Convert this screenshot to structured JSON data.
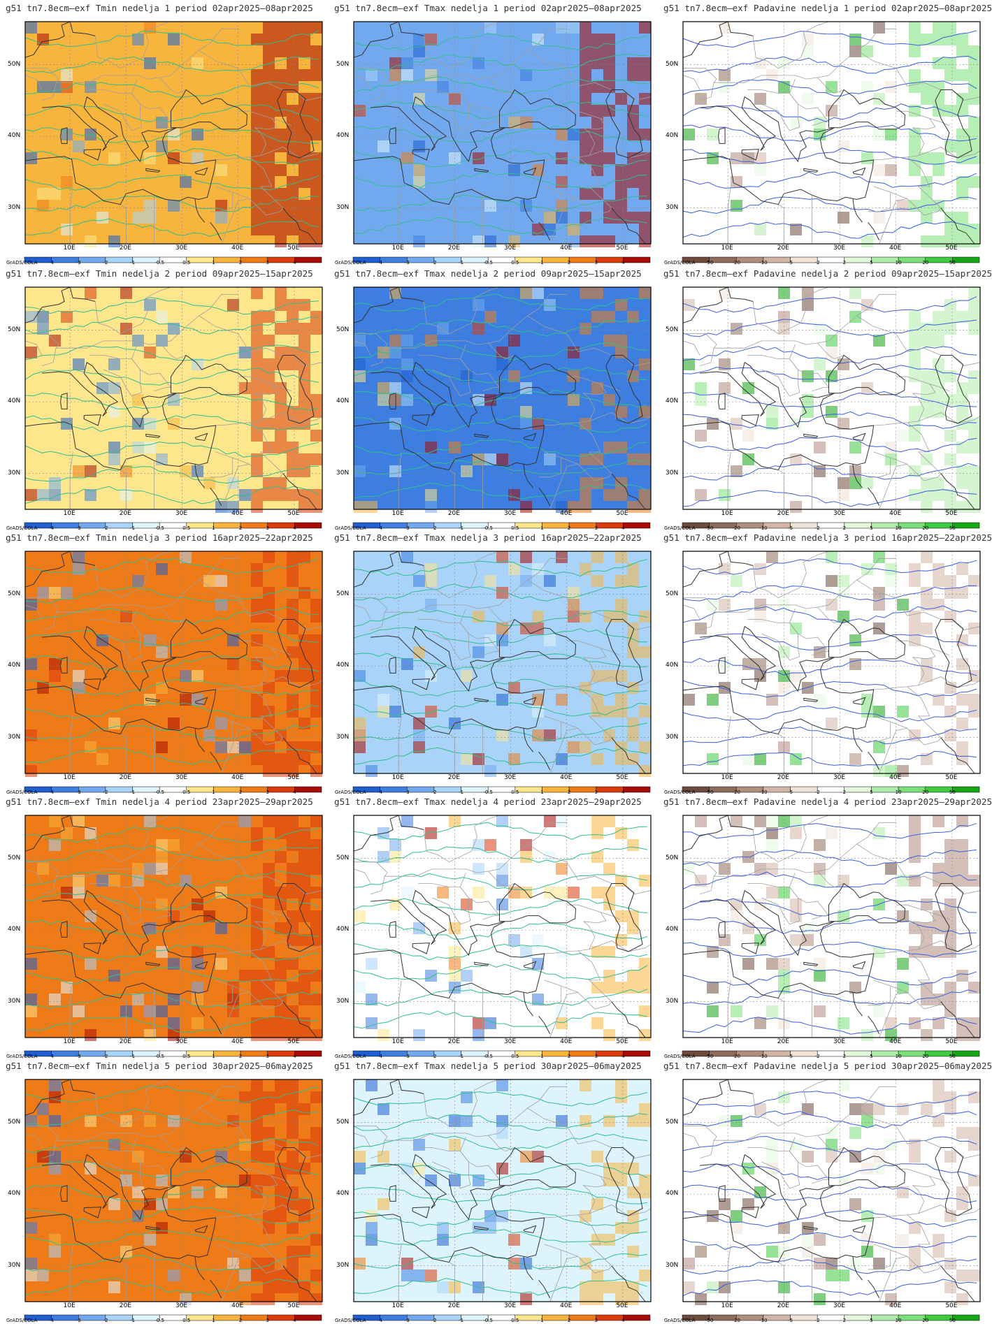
{
  "axes": {
    "lon_labels": [
      "10E",
      "20E",
      "30E",
      "40E",
      "50E"
    ],
    "lon_values": [
      10,
      20,
      30,
      40,
      50
    ],
    "lat_labels": [
      "30N",
      "40N",
      "50N"
    ],
    "lat_values": [
      30,
      40,
      50
    ],
    "lon_range": [
      2,
      55
    ],
    "lat_range": [
      25,
      56
    ]
  },
  "colorbar_credit": "GrADS/COLA",
  "colorbars": {
    "temp": {
      "labels": [
        "-4",
        "-3",
        "-2",
        "-1",
        "-0.5",
        "0.5",
        "1",
        "2",
        "3",
        "4"
      ],
      "colors": [
        "#1f5fcf",
        "#3d7ee0",
        "#72a9ee",
        "#a9d3f8",
        "#def4fd",
        "#ffffff",
        "#fde68c",
        "#f7b53e",
        "#ef7b18",
        "#d93b0c",
        "#a80c06"
      ]
    },
    "precip": {
      "labels": [
        "-50",
        "-20",
        "-10",
        "-5",
        "-2",
        "2",
        "5",
        "10",
        "20",
        "50"
      ],
      "colors": [
        "#6e4b3c",
        "#8e6b5b",
        "#b18d7d",
        "#d2b5a6",
        "#f0e2d7",
        "#ffffff",
        "#e2f7dc",
        "#b0ecaa",
        "#7be07a",
        "#3fcb3f",
        "#16a616"
      ]
    }
  },
  "contour_colors": {
    "temp": "#2fbf8f",
    "precip": "#3a5fe0"
  },
  "rows": [
    {
      "period": "02apr2025–08apr2025",
      "panels": [
        {
          "title": "g51 tn7.8ecm–exf Tmin nedelja 1 period 02apr2025–08apr2025",
          "type": "temp",
          "bg": "#f7b53e",
          "highlight": "#a80c06",
          "hl_level": 0.8
        },
        {
          "title": "g51 tn7.8ecm–exf Tmax nedelja 1 period 02apr2025–08apr2025",
          "type": "temp",
          "bg": "#72a9ee",
          "highlight": "#a80c06",
          "hl_level": 0.6
        },
        {
          "title": "g51 tn7.8ecm–exf Padavine nedelja 1 period 02apr2025–08apr2025",
          "type": "precip",
          "bg": "#ffffff",
          "highlight": "#7be07a",
          "hl_level": 0.6
        }
      ]
    },
    {
      "period": "09apr2025–15apr2025",
      "panels": [
        {
          "title": "g51 tn7.8ecm–exf Tmin nedelja 2 period 09apr2025–15apr2025",
          "type": "temp",
          "bg": "#fde68c",
          "highlight": "#d93b0c",
          "hl_level": 0.6
        },
        {
          "title": "g51 tn7.8ecm–exf Tmax nedelja 2 period 09apr2025–15apr2025",
          "type": "temp",
          "bg": "#3d7ee0",
          "highlight": "#ef7b18",
          "hl_level": 0.3
        },
        {
          "title": "g51 tn7.8ecm–exf Padavine nedelja 2 period 09apr2025–15apr2025",
          "type": "precip",
          "bg": "#ffffff",
          "highlight": "#b0ecaa",
          "hl_level": 0.5
        }
      ]
    },
    {
      "period": "16apr2025–22apr2025",
      "panels": [
        {
          "title": "g51 tn7.8ecm–exf Tmin nedelja 3 period 16apr2025–22apr2025",
          "type": "temp",
          "bg": "#ef7b18",
          "highlight": "#d93b0c",
          "hl_level": 0.5
        },
        {
          "title": "g51 tn7.8ecm–exf Tmax nedelja 3 period 16apr2025–22apr2025",
          "type": "temp",
          "bg": "#a9d3f8",
          "highlight": "#f7b53e",
          "hl_level": 0.3
        },
        {
          "title": "g51 tn7.8ecm–exf Padavine nedelja 3 period 16apr2025–22apr2025",
          "type": "precip",
          "bg": "#ffffff",
          "highlight": "#d2b5a6",
          "hl_level": 0.3
        }
      ]
    },
    {
      "period": "23apr2025–29apr2025",
      "panels": [
        {
          "title": "g51 tn7.8ecm–exf Tmin nedelja 4 period 23apr2025–29apr2025",
          "type": "temp",
          "bg": "#ef7b18",
          "highlight": "#d93b0c",
          "hl_level": 0.6
        },
        {
          "title": "g51 tn7.8ecm–exf Tmax nedelja 4 period 23apr2025–29apr2025",
          "type": "temp",
          "bg": "#ffffff",
          "highlight": "#f7b53e",
          "hl_level": 0.3
        },
        {
          "title": "g51 tn7.8ecm–exf Padavine nedelja 4 period 23apr2025–29apr2025",
          "type": "precip",
          "bg": "#ffffff",
          "highlight": "#b18d7d",
          "hl_level": 0.4
        }
      ]
    },
    {
      "period": "30apr2025–06may2025",
      "panels": [
        {
          "title": "g51 tn7.8ecm–exf Tmin nedelja 5 period 30apr2025–06may2025",
          "type": "temp",
          "bg": "#ef7b18",
          "highlight": "#d93b0c",
          "hl_level": 0.5
        },
        {
          "title": "g51 tn7.8ecm–exf Tmax nedelja 5 period 30apr2025–06may2025",
          "type": "temp",
          "bg": "#def4fd",
          "highlight": "#f7b53e",
          "hl_level": 0.3
        },
        {
          "title": "g51 tn7.8ecm–exf Padavine nedelja 5 period 30apr2025–06may2025",
          "type": "precip",
          "bg": "#ffffff",
          "highlight": "#d2b5a6",
          "hl_level": 0.3
        }
      ]
    }
  ]
}
